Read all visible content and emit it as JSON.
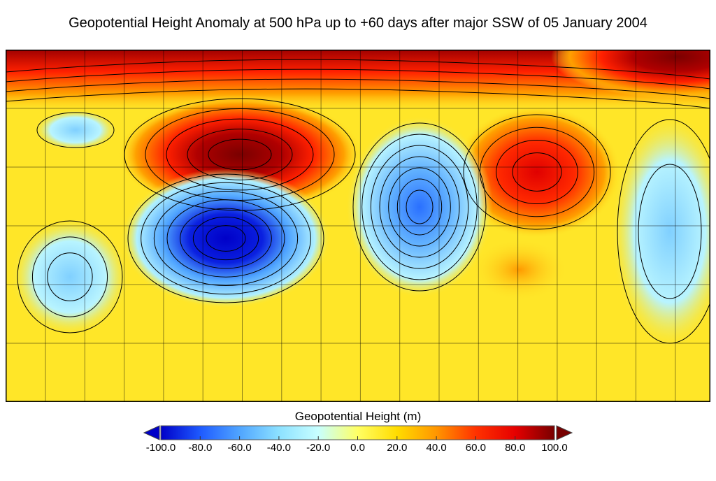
{
  "title": "Geopotential Height Anomaly at 500 hPa up to +60 days after major SSW of 05 January 2004",
  "colorbar": {
    "label": "Geopotential Height (m)",
    "min": -100,
    "max": 100,
    "ticks": [
      "-100.0",
      "-80.0",
      "-60.0",
      "-40.0",
      "-20.0",
      "0.0",
      "20.0",
      "40.0",
      "60.0",
      "80.0",
      "100.0"
    ],
    "colors": [
      "#0000c8",
      "#1e5aff",
      "#50a5ff",
      "#8ce1ff",
      "#c8ffff",
      "#ffff64",
      "#ffdc00",
      "#ff9600",
      "#ff3200",
      "#e60000",
      "#780000"
    ],
    "extend": "both"
  },
  "map": {
    "variable": "500 hPa geopotential height anomaly",
    "background_color": "#ffe628",
    "grid": true
  }
}
